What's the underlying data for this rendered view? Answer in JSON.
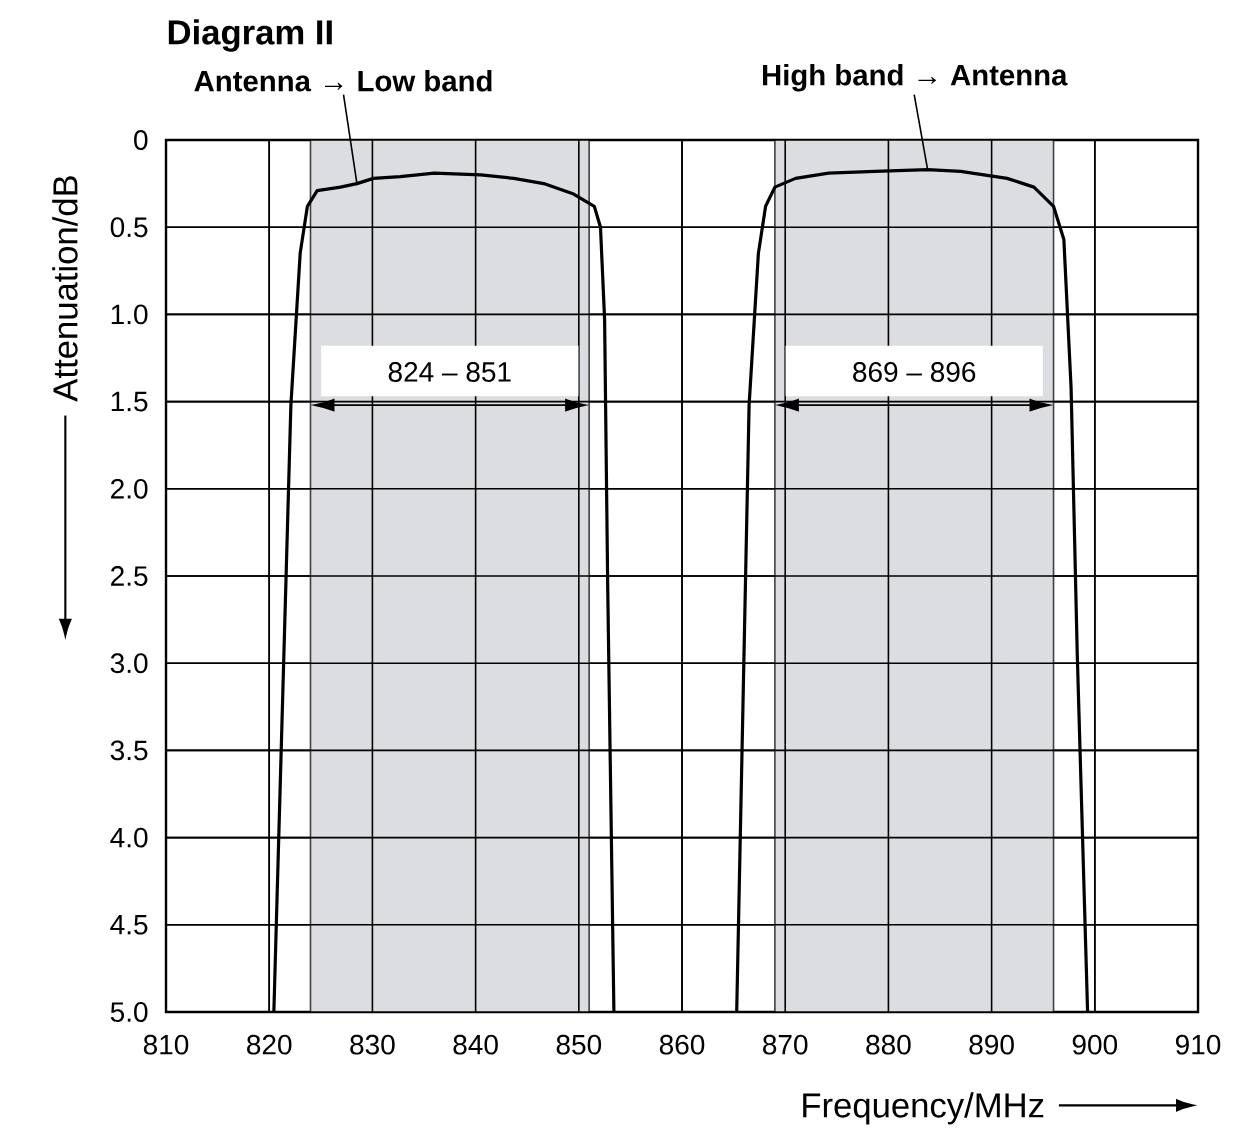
{
  "chart_data": {
    "type": "line",
    "title": "Diagram II",
    "xlabel": "Frequency/MHz",
    "ylabel": "Attenuation/dB",
    "xlim": [
      810,
      910
    ],
    "xticks": [
      810,
      820,
      830,
      840,
      850,
      860,
      870,
      880,
      890,
      900,
      910
    ],
    "ylim": [
      5.0,
      0
    ],
    "yticks": [
      0,
      {
        "value": 0.5,
        "label": "0.5"
      },
      {
        "value": 1,
        "label": "1.0"
      },
      {
        "value": 1.5,
        "label": "1.5"
      },
      {
        "value": 2,
        "label": "2.0"
      },
      {
        "value": 2.5,
        "label": "2.5"
      },
      {
        "value": 3,
        "label": "3.0"
      },
      {
        "value": 3.5,
        "label": "3.5"
      },
      {
        "value": 4,
        "label": "4.0"
      },
      {
        "value": 4.5,
        "label": "4.5"
      },
      {
        "value": 5,
        "label": "5.0"
      }
    ],
    "grid": true,
    "legend": false,
    "marker": "none",
    "line_style": "solid",
    "bands": [
      {
        "axis": "x",
        "from": 824,
        "to": 851,
        "label": "824 – 851",
        "color": "#dcdde0"
      },
      {
        "axis": "x",
        "from": 869,
        "to": 896,
        "label": "869 – 896",
        "color": "#dcdde0"
      }
    ],
    "series": [
      {
        "name": "Antenna → Low band",
        "color": "#000000",
        "x": [
          820.45,
          822.1,
          823.0,
          823.7,
          824.65,
          826.9,
          828.5,
          830.1,
          832.7,
          836.0,
          840.5,
          843.7,
          846.6,
          849.5,
          851.5,
          852.1,
          852.5,
          852.8,
          853.4
        ],
        "values": [
          5.0,
          1.52,
          0.65,
          0.38,
          0.29,
          0.27,
          0.25,
          0.22,
          0.21,
          0.19,
          0.2,
          0.22,
          0.25,
          0.31,
          0.38,
          0.5,
          1.03,
          2.56,
          5.0
        ]
      },
      {
        "name": "High band → Antenna",
        "color": "#000000",
        "x": [
          865.3,
          866.5,
          867.4,
          868.1,
          869.0,
          871.0,
          874.2,
          878.7,
          883.8,
          887.0,
          891.5,
          894.1,
          896.0,
          897.0,
          897.7,
          898.3,
          899.3
        ],
        "values": [
          5.0,
          1.52,
          0.65,
          0.38,
          0.27,
          0.22,
          0.19,
          0.18,
          0.17,
          0.18,
          0.22,
          0.27,
          0.38,
          0.57,
          1.42,
          2.95,
          5.0
        ]
      }
    ]
  }
}
